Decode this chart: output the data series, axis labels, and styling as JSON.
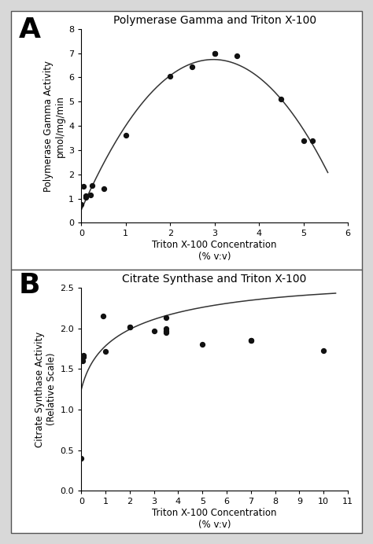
{
  "panel_A": {
    "title": "Polymerase Gamma and Triton X-100",
    "xlabel": "Triton X-100 Concentration\n(% v:v)",
    "ylabel": "Polymerase Gamma Activity\npmol/mg/min",
    "scatter_x": [
      0.0,
      0.05,
      0.1,
      0.1,
      0.2,
      0.25,
      0.5,
      1.0,
      2.0,
      2.5,
      3.0,
      3.0,
      3.5,
      4.5,
      5.0,
      5.2
    ],
    "scatter_y": [
      0.75,
      1.5,
      1.05,
      1.1,
      1.15,
      1.55,
      1.4,
      3.6,
      6.05,
      6.45,
      7.0,
      7.0,
      6.9,
      5.1,
      3.4,
      3.4
    ],
    "xlim": [
      0,
      6
    ],
    "ylim": [
      0,
      8
    ],
    "xticks": [
      0,
      1,
      2,
      3,
      4,
      5,
      6
    ],
    "yticks": [
      0,
      1,
      2,
      3,
      4,
      5,
      6,
      7,
      8
    ]
  },
  "panel_B": {
    "title": "Citrate Synthase and Triton X-100",
    "xlabel": "Triton X-100 Concentration\n(% v:v)",
    "ylabel": "Citrate Synthase Activity\n(Relative Scale)",
    "scatter_x": [
      0.0,
      0.05,
      0.1,
      0.1,
      0.9,
      1.0,
      2.0,
      2.0,
      3.0,
      3.5,
      3.5,
      3.5,
      3.5,
      5.0,
      7.0,
      7.0,
      10.0
    ],
    "scatter_y": [
      0.4,
      1.6,
      1.65,
      1.67,
      2.15,
      1.72,
      2.02,
      2.02,
      1.97,
      2.13,
      2.0,
      1.97,
      1.95,
      1.8,
      1.85,
      1.85,
      1.73
    ],
    "xlim": [
      0,
      11
    ],
    "ylim": [
      0.0,
      2.5
    ],
    "xticks": [
      0,
      1,
      2,
      3,
      4,
      5,
      6,
      7,
      8,
      9,
      10,
      11
    ],
    "yticks": [
      0.0,
      0.5,
      1.0,
      1.5,
      2.0,
      2.5
    ]
  },
  "bg_color": "#d8d8d8",
  "panel_bg": "#ffffff",
  "marker_color": "#111111",
  "line_color": "#333333",
  "font_size_title": 10,
  "font_size_label": 8.5,
  "font_size_tick": 8,
  "font_size_panel_label": 26
}
